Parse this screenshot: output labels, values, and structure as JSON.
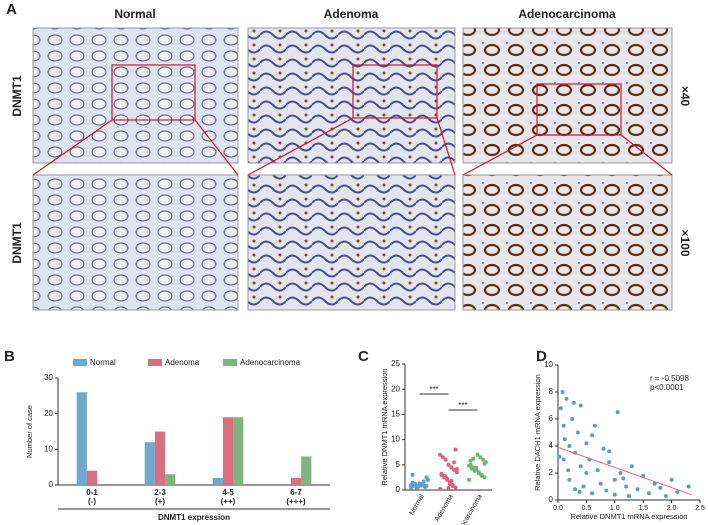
{
  "panel_a": {
    "label": "A",
    "columns": [
      "Normal",
      "Adenoma",
      "Adenocarcinoma"
    ],
    "rows": [
      "DNMT1",
      "DNMT1"
    ],
    "magnifications": [
      "×40",
      "×100"
    ]
  },
  "chart_data": [
    {
      "type": "bar",
      "panel": "B",
      "ylabel": "Number of case",
      "xlabel": "DNMT1 expression",
      "categories": [
        "0-1",
        "2-3",
        "4-5",
        "6-7"
      ],
      "category_sublabels": [
        "(-)",
        "(+)",
        "(++)",
        "(+++)"
      ],
      "series": [
        {
          "name": "Normal",
          "color": "#6fa8c8",
          "values": [
            26,
            12,
            2,
            0
          ]
        },
        {
          "name": "Adenoma",
          "color": "#d9707f",
          "values": [
            4,
            15,
            19,
            2
          ]
        },
        {
          "name": "Adenocarcinoma",
          "color": "#7fb47f",
          "values": [
            0,
            3,
            19,
            8
          ]
        }
      ],
      "ylim": [
        0,
        30
      ],
      "yticks": [
        0,
        10,
        20,
        30
      ]
    },
    {
      "type": "strip",
      "panel": "C",
      "ylabel": "Relative DNMT1 mRNA expression",
      "annotations": [
        "***",
        "***"
      ],
      "series": [
        {
          "name": "Normal",
          "color": "#5aa0c8",
          "values": [
            0.5,
            0.8,
            1.0,
            1.2,
            0.7,
            0.9,
            1.5,
            2.0,
            0.6,
            1.1,
            1.3,
            0.4,
            0.8,
            1.0,
            2.5,
            1.7,
            0.9,
            0.6,
            1.2,
            3.0
          ]
        },
        {
          "name": "Adenoma",
          "color": "#e0607e",
          "values": [
            0.2,
            0.5,
            1,
            1.5,
            2,
            2.5,
            3,
            3.5,
            4,
            4.5,
            5,
            6,
            6.5,
            7,
            8,
            0.8,
            1.2,
            2.2,
            2.8,
            3.2,
            4.2,
            5.5,
            1.8,
            0.4,
            2.6
          ]
        },
        {
          "name": "Adenocarcinoma",
          "color": "#6cb86c",
          "values": [
            2,
            2.5,
            3,
            3.5,
            4,
            4.5,
            5,
            5.5,
            6,
            6.5,
            7,
            3.8,
            4.2,
            4.8,
            5.2,
            2.8,
            3.3,
            4.4,
            6.2,
            5.8
          ]
        }
      ],
      "ylim": [
        0,
        25
      ],
      "yticks": [
        0,
        5,
        10,
        15,
        20,
        25
      ]
    },
    {
      "type": "scatter",
      "panel": "D",
      "xlabel": "Relative DNMT1 mRNA expression",
      "ylabel": "Relative DACH1 mRNA expression",
      "annotations": [
        "r = -0.5098",
        "p<0.0001"
      ],
      "color": "#5b9bd5",
      "trend_color": "#e07070",
      "x": [
        0.05,
        0.1,
        0.1,
        0.15,
        0.2,
        0.2,
        0.25,
        0.3,
        0.3,
        0.35,
        0.4,
        0.4,
        0.45,
        0.5,
        0.5,
        0.55,
        0.6,
        0.65,
        0.7,
        0.75,
        0.8,
        0.85,
        0.9,
        1.0,
        1.0,
        1.05,
        1.1,
        1.2,
        1.25,
        1.3,
        1.4,
        1.5,
        1.6,
        1.7,
        1.8,
        1.9,
        2.0,
        2.1,
        2.3,
        0.02,
        0.08,
        0.12,
        0.18,
        0.28,
        0.38,
        0.6,
        0.9,
        1.15
      ],
      "y": [
        6.8,
        5.5,
        3.0,
        7.5,
        4.0,
        1.5,
        6.0,
        3.5,
        0.8,
        5.0,
        2.5,
        7.0,
        1.0,
        4.2,
        2.0,
        3.0,
        0.5,
        5.5,
        2.2,
        1.2,
        3.8,
        0.7,
        2.8,
        1.5,
        0.4,
        6.5,
        2.0,
        1.0,
        0.3,
        2.5,
        0.8,
        1.8,
        0.5,
        1.2,
        0.9,
        0.3,
        1.5,
        0.6,
        1.0,
        3.2,
        8.0,
        4.5,
        2.2,
        7.2,
        0.6,
        4.8,
        3.6,
        1.6
      ],
      "trend_x": [
        0,
        2.35
      ],
      "trend_y": [
        3.9,
        0.4
      ],
      "xlim": [
        0,
        2.5
      ],
      "xticks": [
        {
          "value": 0,
          "label": "0.0"
        },
        0.5,
        {
          "value": 1,
          "label": "1.0"
        },
        1.5,
        {
          "value": 2,
          "label": "2.0"
        },
        2.5
      ],
      "ylim": [
        0,
        10
      ],
      "yticks": [
        0,
        2,
        4,
        6,
        8,
        10
      ]
    }
  ]
}
